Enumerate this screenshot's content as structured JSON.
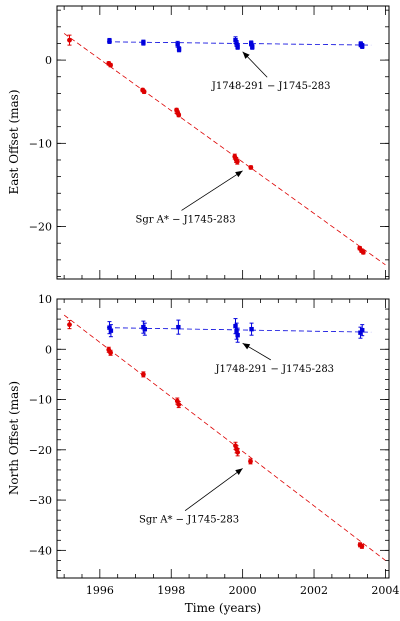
{
  "chart_data": [
    {
      "type": "scatter",
      "ylabel": "East Offset (mas)",
      "xlabel": "",
      "xlim": [
        1994.8,
        2004.1
      ],
      "ylim": [
        -26.3,
        6.5
      ],
      "yticks": [
        0,
        -10,
        -20
      ],
      "tick_labels": [
        "0",
        "−10",
        "−20"
      ],
      "series": [
        {
          "name": "J1748-291 − J1745-283",
          "color": "#0000dd",
          "marker": "square",
          "fit": [
            [
              1996.2,
              2.2
            ],
            [
              2003.6,
              1.8
            ]
          ],
          "points": [
            {
              "x": 1996.27,
              "y": 2.3,
              "err": 0.3
            },
            {
              "x": 1997.22,
              "y": 2.1,
              "err": 0.3
            },
            {
              "x": 1998.18,
              "y": 1.9,
              "err": 0.35
            },
            {
              "x": 1998.22,
              "y": 1.3,
              "err": 0.3
            },
            {
              "x": 1999.8,
              "y": 2.4,
              "err": 0.4
            },
            {
              "x": 1999.83,
              "y": 2.0,
              "err": 0.35
            },
            {
              "x": 1999.86,
              "y": 1.6,
              "err": 0.3
            },
            {
              "x": 2000.24,
              "y": 2.0,
              "err": 0.3
            },
            {
              "x": 2000.27,
              "y": 1.6,
              "err": 0.3
            },
            {
              "x": 2003.31,
              "y": 1.9,
              "err": 0.3
            },
            {
              "x": 2003.35,
              "y": 1.7,
              "err": 0.3
            }
          ]
        },
        {
          "name": "Sgr A* − J1745-283",
          "color": "#dd0000",
          "marker": "circle",
          "fit": [
            [
              1995.0,
              3.2
            ],
            [
              2004.0,
              -24.6
            ]
          ],
          "points": [
            {
              "x": 1995.15,
              "y": 2.4,
              "err": 0.6
            },
            {
              "x": 1996.25,
              "y": -0.4,
              "err": 0.2
            },
            {
              "x": 1996.3,
              "y": -0.6,
              "err": 0.2
            },
            {
              "x": 1997.2,
              "y": -3.6,
              "err": 0.2
            },
            {
              "x": 1997.24,
              "y": -3.8,
              "err": 0.2
            },
            {
              "x": 1998.15,
              "y": -6.0,
              "err": 0.2
            },
            {
              "x": 1998.18,
              "y": -6.3,
              "err": 0.2
            },
            {
              "x": 1998.21,
              "y": -6.6,
              "err": 0.2
            },
            {
              "x": 1999.78,
              "y": -11.6,
              "err": 0.3
            },
            {
              "x": 1999.82,
              "y": -12.0,
              "err": 0.3
            },
            {
              "x": 1999.85,
              "y": -12.2,
              "err": 0.3
            },
            {
              "x": 2000.23,
              "y": -12.9,
              "err": 0.2
            },
            {
              "x": 2003.28,
              "y": -22.6,
              "err": 0.2
            },
            {
              "x": 2003.33,
              "y": -22.9,
              "err": 0.2
            },
            {
              "x": 2003.38,
              "y": -23.1,
              "err": 0.2
            }
          ]
        }
      ],
      "annotations": [
        {
          "text": "J1748-291 − J1745-283",
          "ax": 2000.0,
          "ay": 1.0,
          "tx": 2000.8,
          "ty": -3.5
        },
        {
          "text": "Sgr A* − J1745-283",
          "ax": 2000.0,
          "ay": -13.3,
          "tx": 1998.4,
          "ty": -19.5
        }
      ]
    },
    {
      "type": "scatter",
      "ylabel": "North Offset (mas)",
      "xlabel": "Time (years)",
      "xlim": [
        1994.8,
        2004.1
      ],
      "ylim": [
        -45.5,
        10.0
      ],
      "yticks": [
        10,
        0,
        -10,
        -20,
        -30,
        -40
      ],
      "tick_labels": [
        "10",
        "0",
        "−10",
        "−20",
        "−30",
        "−40"
      ],
      "xticks": [
        1996,
        1998,
        2000,
        2002,
        2004
      ],
      "x_tick_labels": [
        "1996",
        "1998",
        "2000",
        "2002",
        "2004"
      ],
      "series": [
        {
          "name": "J1748-291 − J1745-283",
          "color": "#0000dd",
          "marker": "square",
          "fit": [
            [
              1996.2,
              4.3
            ],
            [
              2003.6,
              3.4
            ]
          ],
          "points": [
            {
              "x": 1996.27,
              "y": 4.3,
              "err": 1.2
            },
            {
              "x": 1996.31,
              "y": 3.7,
              "err": 1.2
            },
            {
              "x": 1997.22,
              "y": 4.4,
              "err": 1.2
            },
            {
              "x": 1997.26,
              "y": 4.0,
              "err": 1.2
            },
            {
              "x": 1998.2,
              "y": 4.4,
              "err": 1.4
            },
            {
              "x": 1999.8,
              "y": 4.6,
              "err": 1.5
            },
            {
              "x": 1999.83,
              "y": 3.6,
              "err": 1.6
            },
            {
              "x": 1999.86,
              "y": 2.8,
              "err": 1.4
            },
            {
              "x": 2000.25,
              "y": 4.0,
              "err": 1.2
            },
            {
              "x": 2003.3,
              "y": 3.3,
              "err": 1.1
            },
            {
              "x": 2003.35,
              "y": 3.8,
              "err": 1.1
            }
          ]
        },
        {
          "name": "Sgr A* − J1745-283",
          "color": "#dd0000",
          "marker": "circle",
          "fit": [
            [
              1995.0,
              6.8
            ],
            [
              2004.0,
              -42.0
            ]
          ],
          "points": [
            {
              "x": 1995.15,
              "y": 4.9,
              "err": 0.8
            },
            {
              "x": 1996.25,
              "y": -0.1,
              "err": 0.5
            },
            {
              "x": 1996.3,
              "y": -0.7,
              "err": 0.5
            },
            {
              "x": 1997.22,
              "y": -5.0,
              "err": 0.5
            },
            {
              "x": 1998.17,
              "y": -10.3,
              "err": 0.6
            },
            {
              "x": 1998.21,
              "y": -11.0,
              "err": 0.6
            },
            {
              "x": 1999.8,
              "y": -19.2,
              "err": 0.7
            },
            {
              "x": 1999.83,
              "y": -19.9,
              "err": 0.7
            },
            {
              "x": 1999.86,
              "y": -20.5,
              "err": 0.7
            },
            {
              "x": 2000.22,
              "y": -22.3,
              "err": 0.5
            },
            {
              "x": 2003.29,
              "y": -38.9,
              "err": 0.4
            },
            {
              "x": 2003.34,
              "y": -39.2,
              "err": 0.4
            }
          ]
        }
      ],
      "annotations": [
        {
          "text": "J1748-291 − J1745-283",
          "ax": 2000.0,
          "ay": 1.2,
          "tx": 2000.9,
          "ty": -4.5
        },
        {
          "text": "Sgr A* − J1745-283",
          "ax": 2000.0,
          "ay": -23.7,
          "tx": 1998.5,
          "ty": -34.5
        }
      ]
    }
  ]
}
